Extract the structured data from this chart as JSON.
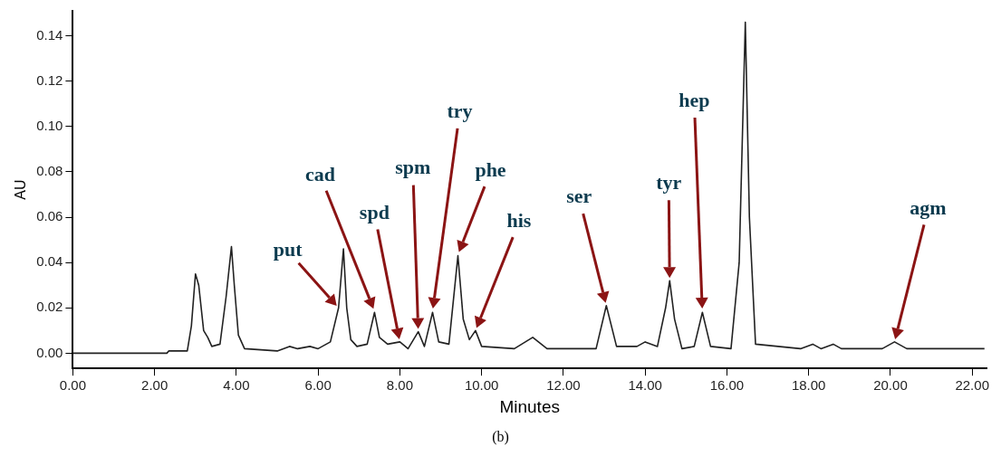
{
  "chart_data": {
    "type": "line",
    "xlabel": "Minutes",
    "ylabel": "AU",
    "xlim": [
      0,
      22.35
    ],
    "ylim": [
      -0.0067,
      0.151
    ],
    "xticks": [
      {
        "value": 0,
        "label": "0.00"
      },
      {
        "value": 2,
        "label": "2.00"
      },
      {
        "value": 4,
        "label": "4.00"
      },
      {
        "value": 6,
        "label": "6.00"
      },
      {
        "value": 8,
        "label": "8.00"
      },
      {
        "value": 10,
        "label": "10.00"
      },
      {
        "value": 12,
        "label": "12.00"
      },
      {
        "value": 14,
        "label": "14.00"
      },
      {
        "value": 16,
        "label": "16.00"
      },
      {
        "value": 18,
        "label": "18.00"
      },
      {
        "value": 20,
        "label": "20.00"
      },
      {
        "value": 22,
        "label": "22.00"
      }
    ],
    "yticks": [
      {
        "value": 0,
        "label": "0.00"
      },
      {
        "value": 0.02,
        "label": "0.02"
      },
      {
        "value": 0.04,
        "label": "0.04"
      },
      {
        "value": 0.06,
        "label": "0.06"
      },
      {
        "value": 0.08,
        "label": "0.08"
      },
      {
        "value": 0.1,
        "label": "0.10"
      },
      {
        "value": 0.12,
        "label": "0.12"
      },
      {
        "value": 0.14,
        "label": "0.14"
      }
    ],
    "grid": false,
    "legend": false,
    "marker": "none",
    "line_style": "solid",
    "x": [
      0,
      2.3,
      2.35,
      2.8,
      2.9,
      3.0,
      3.08,
      3.2,
      3.3,
      3.4,
      3.6,
      3.75,
      3.88,
      3.95,
      4.05,
      4.2,
      5.0,
      5.3,
      5.5,
      5.8,
      6.0,
      6.3,
      6.5,
      6.62,
      6.7,
      6.8,
      6.95,
      7.2,
      7.38,
      7.5,
      7.7,
      8.0,
      8.2,
      8.45,
      8.6,
      8.8,
      8.95,
      9.2,
      9.42,
      9.55,
      9.7,
      9.85,
      10.0,
      10.8,
      11.25,
      11.6,
      12.8,
      13.05,
      13.3,
      13.8,
      14.0,
      14.3,
      14.5,
      14.6,
      14.72,
      14.9,
      15.2,
      15.4,
      15.6,
      16.1,
      16.3,
      16.45,
      16.55,
      16.7,
      17.8,
      18.1,
      18.3,
      18.6,
      18.8,
      19.8,
      20.1,
      20.4,
      22.3
    ],
    "series": [
      {
        "color": "#222222",
        "values": [
          0,
          0,
          0.001,
          0.001,
          0.012,
          0.035,
          0.03,
          0.01,
          0.007,
          0.003,
          0.004,
          0.025,
          0.047,
          0.03,
          0.008,
          0.002,
          0.001,
          0.003,
          0.002,
          0.003,
          0.002,
          0.005,
          0.02,
          0.046,
          0.02,
          0.006,
          0.003,
          0.004,
          0.018,
          0.007,
          0.004,
          0.005,
          0.002,
          0.0095,
          0.003,
          0.018,
          0.005,
          0.004,
          0.043,
          0.015,
          0.006,
          0.01,
          0.003,
          0.002,
          0.007,
          0.002,
          0.002,
          0.021,
          0.003,
          0.003,
          0.005,
          0.003,
          0.02,
          0.032,
          0.015,
          0.002,
          0.003,
          0.018,
          0.003,
          0.002,
          0.04,
          0.146,
          0.06,
          0.004,
          0.002,
          0.004,
          0.002,
          0.004,
          0.002,
          0.002,
          0.005,
          0.002,
          0.002
        ]
      }
    ],
    "annotations": [
      "put",
      "cad",
      "spd",
      "spm",
      "try",
      "phe",
      "his",
      "ser",
      "tyr",
      "hep",
      "agm",
      "(b)"
    ]
  }
}
